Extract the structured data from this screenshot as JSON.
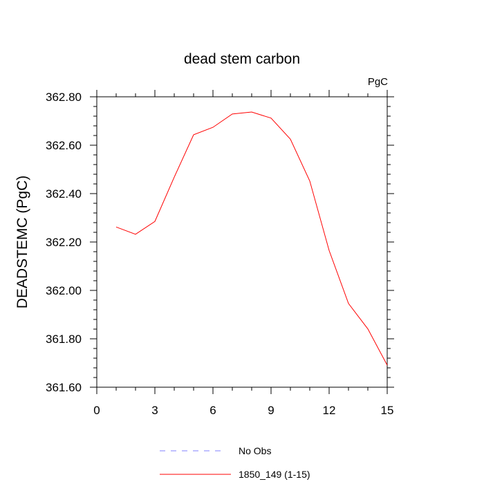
{
  "chart_data": {
    "type": "line",
    "title": "dead stem carbon",
    "units_label": "PgC",
    "xlabel": "",
    "ylabel": "DEADSTEMC  (PgC)",
    "xlim": [
      0,
      15
    ],
    "ylim": [
      361.6,
      362.8
    ],
    "x_ticks": [
      0,
      3,
      6,
      9,
      12,
      15
    ],
    "x_tick_labels": [
      "0",
      "3",
      "6",
      "9",
      "12",
      "15"
    ],
    "y_ticks": [
      361.6,
      361.8,
      362.0,
      362.2,
      362.4,
      362.6,
      362.8
    ],
    "y_tick_labels": [
      "361.60",
      "361.80",
      "362.00",
      "362.20",
      "362.40",
      "362.60",
      "362.80"
    ],
    "grid": false,
    "legend_placement": "bottom-center",
    "series": [
      {
        "name": "No Obs",
        "color": "#8080ff",
        "dash": "dashed",
        "x": [],
        "y": []
      },
      {
        "name": "1850_149 (1-15)",
        "color": "#ff0000",
        "dash": "solid",
        "x": [
          1,
          2,
          3,
          4,
          5,
          6,
          7,
          8,
          9,
          10,
          11,
          12,
          13,
          14,
          15
        ],
        "y": [
          362.262,
          362.232,
          362.285,
          362.468,
          362.643,
          362.674,
          362.729,
          362.737,
          362.712,
          362.625,
          362.452,
          362.165,
          361.946,
          361.841,
          361.691
        ]
      }
    ]
  }
}
